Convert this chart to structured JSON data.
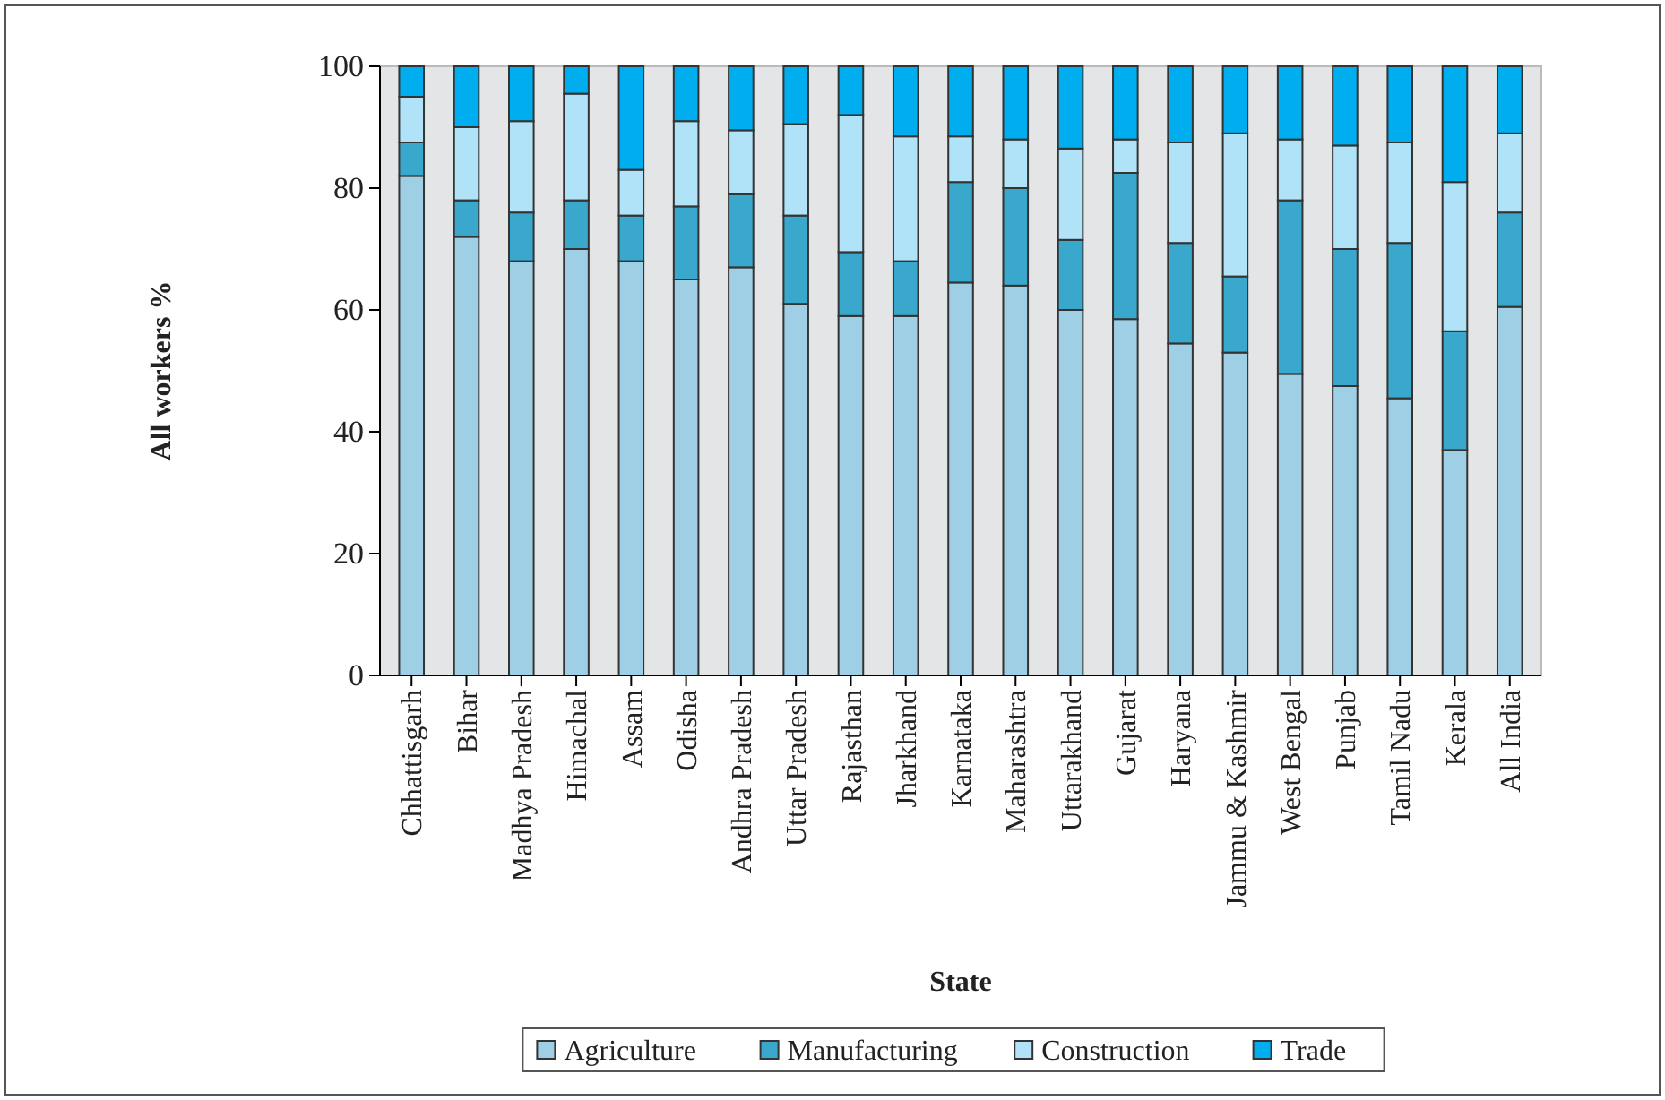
{
  "chart_data": {
    "type": "bar",
    "stacked": true,
    "xlabel": "State",
    "ylabel": "All workers %",
    "categories": [
      "Chhattisgarh",
      "Bihar",
      "Madhya Pradesh",
      "Himachal",
      "Assam",
      "Odisha",
      "Andhra Pradesh",
      "Uttar Pradesh",
      "Rajasthan",
      "Jharkhand",
      "Karnataka",
      "Maharashtra",
      "Uttarakhand",
      "Gujarat",
      "Haryana",
      "Jammu & Kashmir",
      "West Bengal",
      "Punjab",
      "Tamil Nadu",
      "Kerala",
      "All India"
    ],
    "series": [
      {
        "name": "Agriculture",
        "color": "#9ecfe4",
        "values": [
          82,
          72,
          68,
          70,
          68,
          65,
          67,
          61,
          59,
          59,
          64.5,
          64,
          60,
          58.5,
          54.5,
          53,
          49.5,
          47.5,
          45.5,
          37,
          60.5
        ]
      },
      {
        "name": "Manufacturing",
        "color": "#3aa8cc",
        "values": [
          5.5,
          6,
          8,
          8,
          7.5,
          12,
          12,
          14.5,
          10.5,
          9,
          16.5,
          16,
          11.5,
          24,
          16.5,
          12.5,
          28.5,
          22.5,
          25.5,
          19.5,
          15.5
        ]
      },
      {
        "name": "Construction",
        "color": "#b0e2f8",
        "values": [
          7.5,
          12,
          15,
          17.5,
          7.5,
          14,
          10.5,
          15,
          22.5,
          20.5,
          7.5,
          8,
          15,
          5.5,
          16.5,
          23.5,
          10,
          17,
          16.5,
          24.5,
          13
        ]
      },
      {
        "name": "Trade",
        "color": "#00aeef",
        "values": [
          5,
          10,
          9,
          4.5,
          17,
          9,
          10.5,
          9.5,
          8,
          11.5,
          11.5,
          12,
          13.5,
          12,
          12.5,
          11,
          12,
          13,
          12.5,
          19,
          11
        ]
      }
    ],
    "ylim": [
      0,
      100
    ],
    "yticks": [
      0,
      20,
      40,
      60,
      80,
      100
    ],
    "grid": false,
    "legend": "bottom"
  }
}
